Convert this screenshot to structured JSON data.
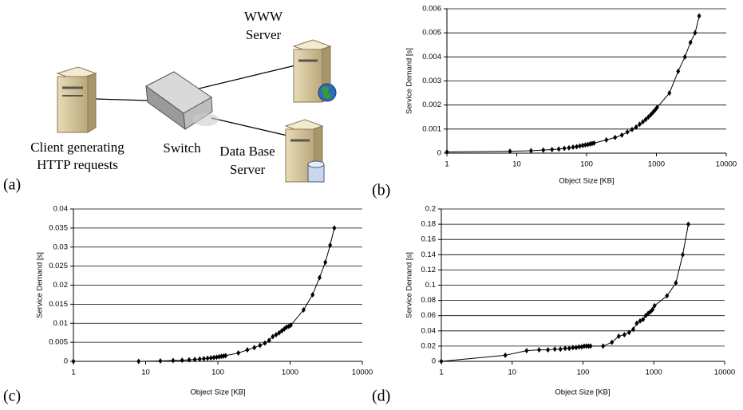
{
  "panel_labels": [
    "(a)",
    "(b)",
    "(c)",
    "(d)"
  ],
  "diagram": {
    "nodes": [
      {
        "label_lines": [
          "Client generating",
          "HTTP requests"
        ]
      },
      {
        "label_lines": [
          "Switch"
        ]
      },
      {
        "label_lines": [
          "WWW",
          "Server"
        ]
      },
      {
        "label_lines": [
          "Data Base",
          "Server"
        ]
      }
    ]
  },
  "chart_data": [
    {
      "type": "line",
      "xlabel": "Object Size [KB]",
      "ylabel": "Service Demand [s]",
      "log_x": true,
      "grid": true,
      "color": "#000000",
      "marker": "diamond",
      "xlim": [
        1,
        10000
      ],
      "xticks": [
        1,
        10,
        100,
        1000,
        10000
      ],
      "ylim": [
        0,
        0.006
      ],
      "yticks": [
        0,
        0.001,
        0.002,
        0.003,
        0.004,
        0.005,
        0.006
      ],
      "x": [
        1,
        8,
        16,
        24,
        32,
        40,
        48,
        56,
        64,
        72,
        80,
        88,
        96,
        104,
        112,
        120,
        128,
        192,
        256,
        320,
        384,
        448,
        512,
        576,
        640,
        704,
        768,
        832,
        896,
        960,
        1024,
        1536,
        2048,
        2560,
        3072,
        3584,
        4096
      ],
      "values": [
        5e-05,
        8e-05,
        0.0001,
        0.00013,
        0.00015,
        0.00017,
        0.0002,
        0.00022,
        0.00025,
        0.00027,
        0.0003,
        0.00032,
        0.00034,
        0.00036,
        0.00038,
        0.0004,
        0.00042,
        0.00055,
        0.00065,
        0.00075,
        0.00088,
        0.00098,
        0.00108,
        0.0012,
        0.0013,
        0.0014,
        0.0015,
        0.0016,
        0.0017,
        0.0018,
        0.0019,
        0.0025,
        0.0034,
        0.004,
        0.0046,
        0.005,
        0.0057
      ]
    },
    {
      "type": "line",
      "xlabel": "Object Size [KB]",
      "ylabel": "Service Demand [s]",
      "log_x": true,
      "grid": true,
      "color": "#000000",
      "marker": "diamond",
      "xlim": [
        1,
        10000
      ],
      "xticks": [
        1,
        10,
        100,
        1000,
        10000
      ],
      "ylim": [
        0,
        0.04
      ],
      "yticks": [
        0,
        0.005,
        0.01,
        0.015,
        0.02,
        0.025,
        0.03,
        0.035,
        0.04
      ],
      "x": [
        1,
        8,
        16,
        24,
        32,
        40,
        48,
        56,
        64,
        72,
        80,
        88,
        96,
        104,
        112,
        120,
        128,
        192,
        256,
        320,
        384,
        448,
        512,
        576,
        640,
        704,
        768,
        832,
        896,
        960,
        1024,
        1536,
        2048,
        2560,
        3072,
        3584,
        4096
      ],
      "values": [
        0,
        0,
        0.0001,
        0.0002,
        0.0003,
        0.0004,
        0.0005,
        0.0006,
        0.0007,
        0.0008,
        0.0009,
        0.001,
        0.0011,
        0.0012,
        0.0013,
        0.0014,
        0.0015,
        0.0022,
        0.003,
        0.0036,
        0.0042,
        0.0048,
        0.0055,
        0.0065,
        0.007,
        0.0075,
        0.008,
        0.0085,
        0.009,
        0.0092,
        0.0095,
        0.0135,
        0.0175,
        0.022,
        0.026,
        0.0305,
        0.035
      ]
    },
    {
      "type": "line",
      "xlabel": "Object Size [KB]",
      "ylabel": "Service Demand [s]",
      "log_x": true,
      "grid": true,
      "color": "#000000",
      "marker": "diamond",
      "xlim": [
        1,
        10000
      ],
      "xticks": [
        1,
        10,
        100,
        1000,
        10000
      ],
      "ylim": [
        0,
        0.2
      ],
      "yticks": [
        0,
        0.02,
        0.04,
        0.06,
        0.08,
        0.1,
        0.12,
        0.14,
        0.16,
        0.18,
        0.2
      ],
      "x": [
        1,
        8,
        16,
        24,
        32,
        40,
        48,
        56,
        64,
        72,
        80,
        88,
        96,
        104,
        112,
        120,
        128,
        192,
        256,
        320,
        384,
        448,
        512,
        576,
        640,
        704,
        768,
        832,
        896,
        960,
        1024,
        1536,
        2048,
        2560,
        3072
      ],
      "values": [
        0,
        0.008,
        0.014,
        0.015,
        0.015,
        0.016,
        0.016,
        0.017,
        0.017,
        0.018,
        0.018,
        0.019,
        0.019,
        0.02,
        0.02,
        0.02,
        0.02,
        0.02,
        0.025,
        0.033,
        0.035,
        0.038,
        0.042,
        0.05,
        0.053,
        0.055,
        0.06,
        0.063,
        0.065,
        0.068,
        0.073,
        0.086,
        0.103,
        0.14,
        0.18
      ]
    }
  ]
}
